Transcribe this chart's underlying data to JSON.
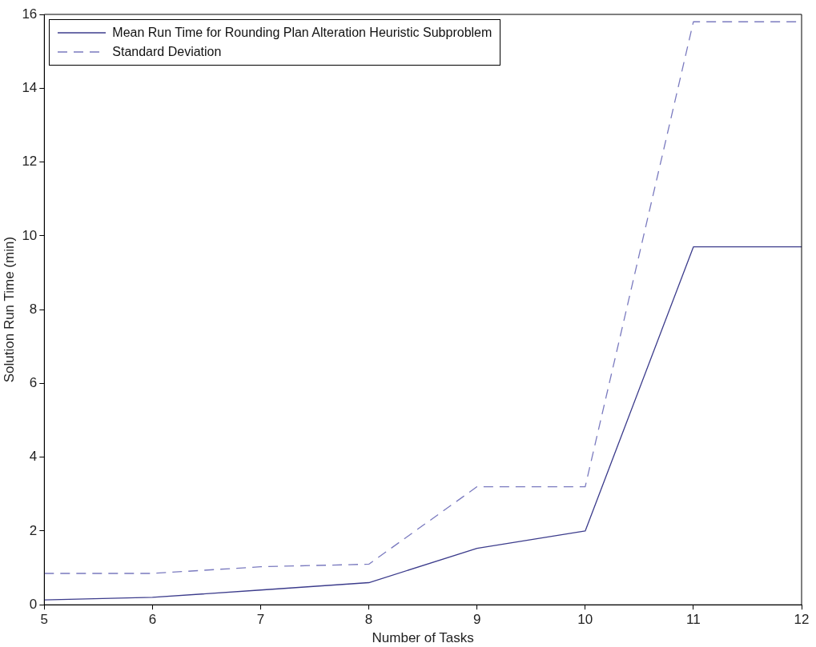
{
  "chart_data": {
    "type": "line",
    "xlabel": "Number of Tasks",
    "ylabel": "Solution Run Time (min)",
    "x": [
      5,
      6,
      7,
      8,
      9,
      10,
      11,
      12
    ],
    "series": [
      {
        "name": "Mean Run Time for Rounding Plan Alteration Heuristic Subproblem",
        "color": "#3c3c8c",
        "line_style": "solid",
        "values": [
          0.13,
          0.2,
          0.4,
          0.6,
          1.53,
          2.0,
          9.7,
          9.7
        ]
      },
      {
        "name": "Standard Deviation",
        "color": "#7a7abf",
        "line_style": "dashed",
        "values": [
          0.85,
          0.85,
          1.03,
          1.1,
          3.2,
          3.2,
          15.8,
          15.8
        ]
      }
    ],
    "xlim": [
      5,
      12
    ],
    "xticks": [
      5,
      6,
      7,
      8,
      9,
      10,
      11,
      12
    ],
    "ylim": [
      0,
      16
    ],
    "yticks": [
      0,
      2,
      4,
      6,
      8,
      10,
      12,
      14,
      16
    ],
    "grid": false,
    "legend": "top left",
    "marker": "none"
  }
}
